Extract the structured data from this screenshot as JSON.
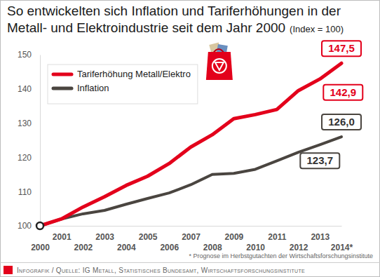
{
  "chart_data": {
    "type": "line",
    "title": "So entwickelten sich Inflation und Tariferhöhungen in der Metall- und Elektroindustrie seit dem Jahr 2000",
    "subtitle": "(Index = 100)",
    "footnote": "* Prognose im Herbstgutachten der Wirtschaftsforschungsinstitute",
    "source": "Infografik / Quelle: IG Metall, Statistisches Bundesamt, Wirtschaftsforschungsinstitute",
    "categories": [
      "2000",
      "2001",
      "2002",
      "2003",
      "2004",
      "2005",
      "2006",
      "2007",
      "2008",
      "2009",
      "2010",
      "2011",
      "2012",
      "2013",
      "2014*"
    ],
    "series": [
      {
        "name": "Tariferhöhung Metall/Elektro",
        "color": "#e3001b",
        "values": [
          100,
          102,
          105.5,
          108.5,
          111.8,
          114.5,
          118.2,
          123,
          126.6,
          131.3,
          132.5,
          134,
          139.5,
          142.9,
          147.5
        ],
        "value_labels": [
          null,
          null,
          null,
          null,
          null,
          null,
          null,
          null,
          null,
          null,
          null,
          null,
          null,
          "142,9",
          "147,5"
        ]
      },
      {
        "name": "Inflation",
        "color": "#4a4540",
        "values": [
          100,
          102,
          103.5,
          104.5,
          106.3,
          108,
          109.6,
          112,
          115,
          115.3,
          116.5,
          119,
          121.5,
          123.7,
          126
        ],
        "value_labels": [
          null,
          null,
          null,
          null,
          null,
          null,
          null,
          null,
          null,
          null,
          null,
          null,
          null,
          "123,7",
          "126,0"
        ]
      }
    ],
    "ylim": [
      100,
      150
    ],
    "yticks": [
      100,
      110,
      120,
      130,
      140,
      150
    ],
    "grid": false,
    "legend": "top-left",
    "data_labels": true
  }
}
